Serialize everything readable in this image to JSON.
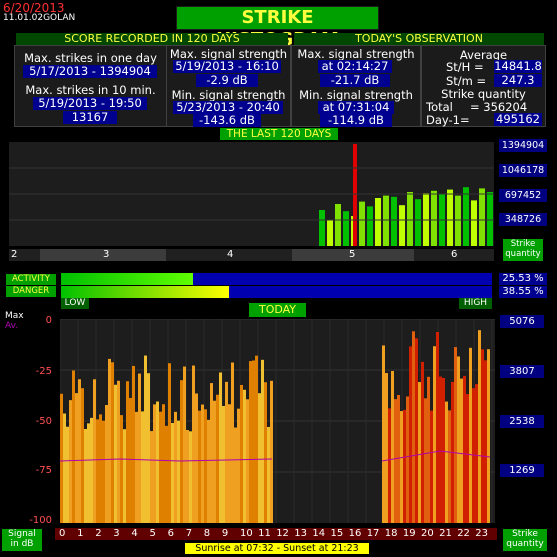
{
  "header": {
    "date": "6/20/2013",
    "version": "11.01.02",
    "station": "GOLAN",
    "title": "STRIKE HISTOGRAM"
  },
  "score": {
    "heading": "SCORE RECORDED IN 120 DAYS",
    "max_day_label": "Max. strikes in one day",
    "max_day_value": "5/17/2013 - 1394904",
    "max_10min_label": "Max. strikes in 10 min.",
    "max_10min_date": "5/19/2013 - 19:50",
    "max_10min_value": "13167",
    "max_signal_label": "Max. signal strength",
    "max_signal_date": "5/19/2013 - 16:10",
    "max_signal_value": "-2.9 dB",
    "min_signal_label": "Min. signal strength",
    "min_signal_date": "5/23/2013 - 20:40",
    "min_signal_value": "-143.6 dB"
  },
  "today": {
    "heading": "TODAY'S OBSERVATION",
    "max_signal_label": "Max. signal strength",
    "max_signal_time": "at 02:14:27",
    "max_signal_value": "-21.7 dB",
    "min_signal_label": "Min. signal strength",
    "min_signal_time": "at 07:31:04",
    "min_signal_value": "-114.9 dB",
    "average_label": "Average",
    "sth_label": "St/H =",
    "sth_value": "14841.8",
    "stm_label": "St/m =",
    "stm_value": "247.3",
    "quantity_label": "Strike quantity",
    "total_label": "Total",
    "total_value": "= 356204",
    "day1_label": "Day-1=",
    "day1_value": "495162"
  },
  "last120": {
    "heading": "THE LAST 120 DAYS",
    "y_labels": [
      "1394904",
      "1046178",
      "697452",
      "348726"
    ],
    "month_labels": [
      "2",
      "3",
      "4",
      "5",
      "6"
    ],
    "quantity_label_1": "Strike",
    "quantity_label_2": "quantity"
  },
  "meters": {
    "activity_label": "ACTIVITY",
    "danger_label": "DANGER",
    "activity_pct": 25.53,
    "danger_pct": 38.55,
    "activity_text": "25.53 %",
    "danger_text": "38.55 %",
    "low_label": "LOW",
    "high_label": "HIGH"
  },
  "today_chart": {
    "heading": "TODAY",
    "max_label": "Max",
    "av_label": "Av.",
    "y_ticks": [
      "0",
      "-25",
      "-50",
      "-75",
      "-100"
    ],
    "right_labels": [
      "5076",
      "3807",
      "2538",
      "1269"
    ],
    "hours": [
      "0",
      "1",
      "2",
      "3",
      "4",
      "5",
      "6",
      "7",
      "8",
      "9",
      "10",
      "11",
      "12",
      "13",
      "14",
      "15",
      "16",
      "17",
      "18",
      "19",
      "20",
      "21",
      "22",
      "23"
    ],
    "signal_label_1": "Signal",
    "signal_label_2": "in dB",
    "quantity_label_1": "Strike",
    "quantity_label_2": "quantity",
    "sun": "Sunrise at 07:32  -  Sunset at 21:23"
  },
  "colors": {
    "accent_green": "#00a000",
    "value_blue": "#000090",
    "title_yellow": "#ffff40",
    "date_red": "#ff3030"
  }
}
